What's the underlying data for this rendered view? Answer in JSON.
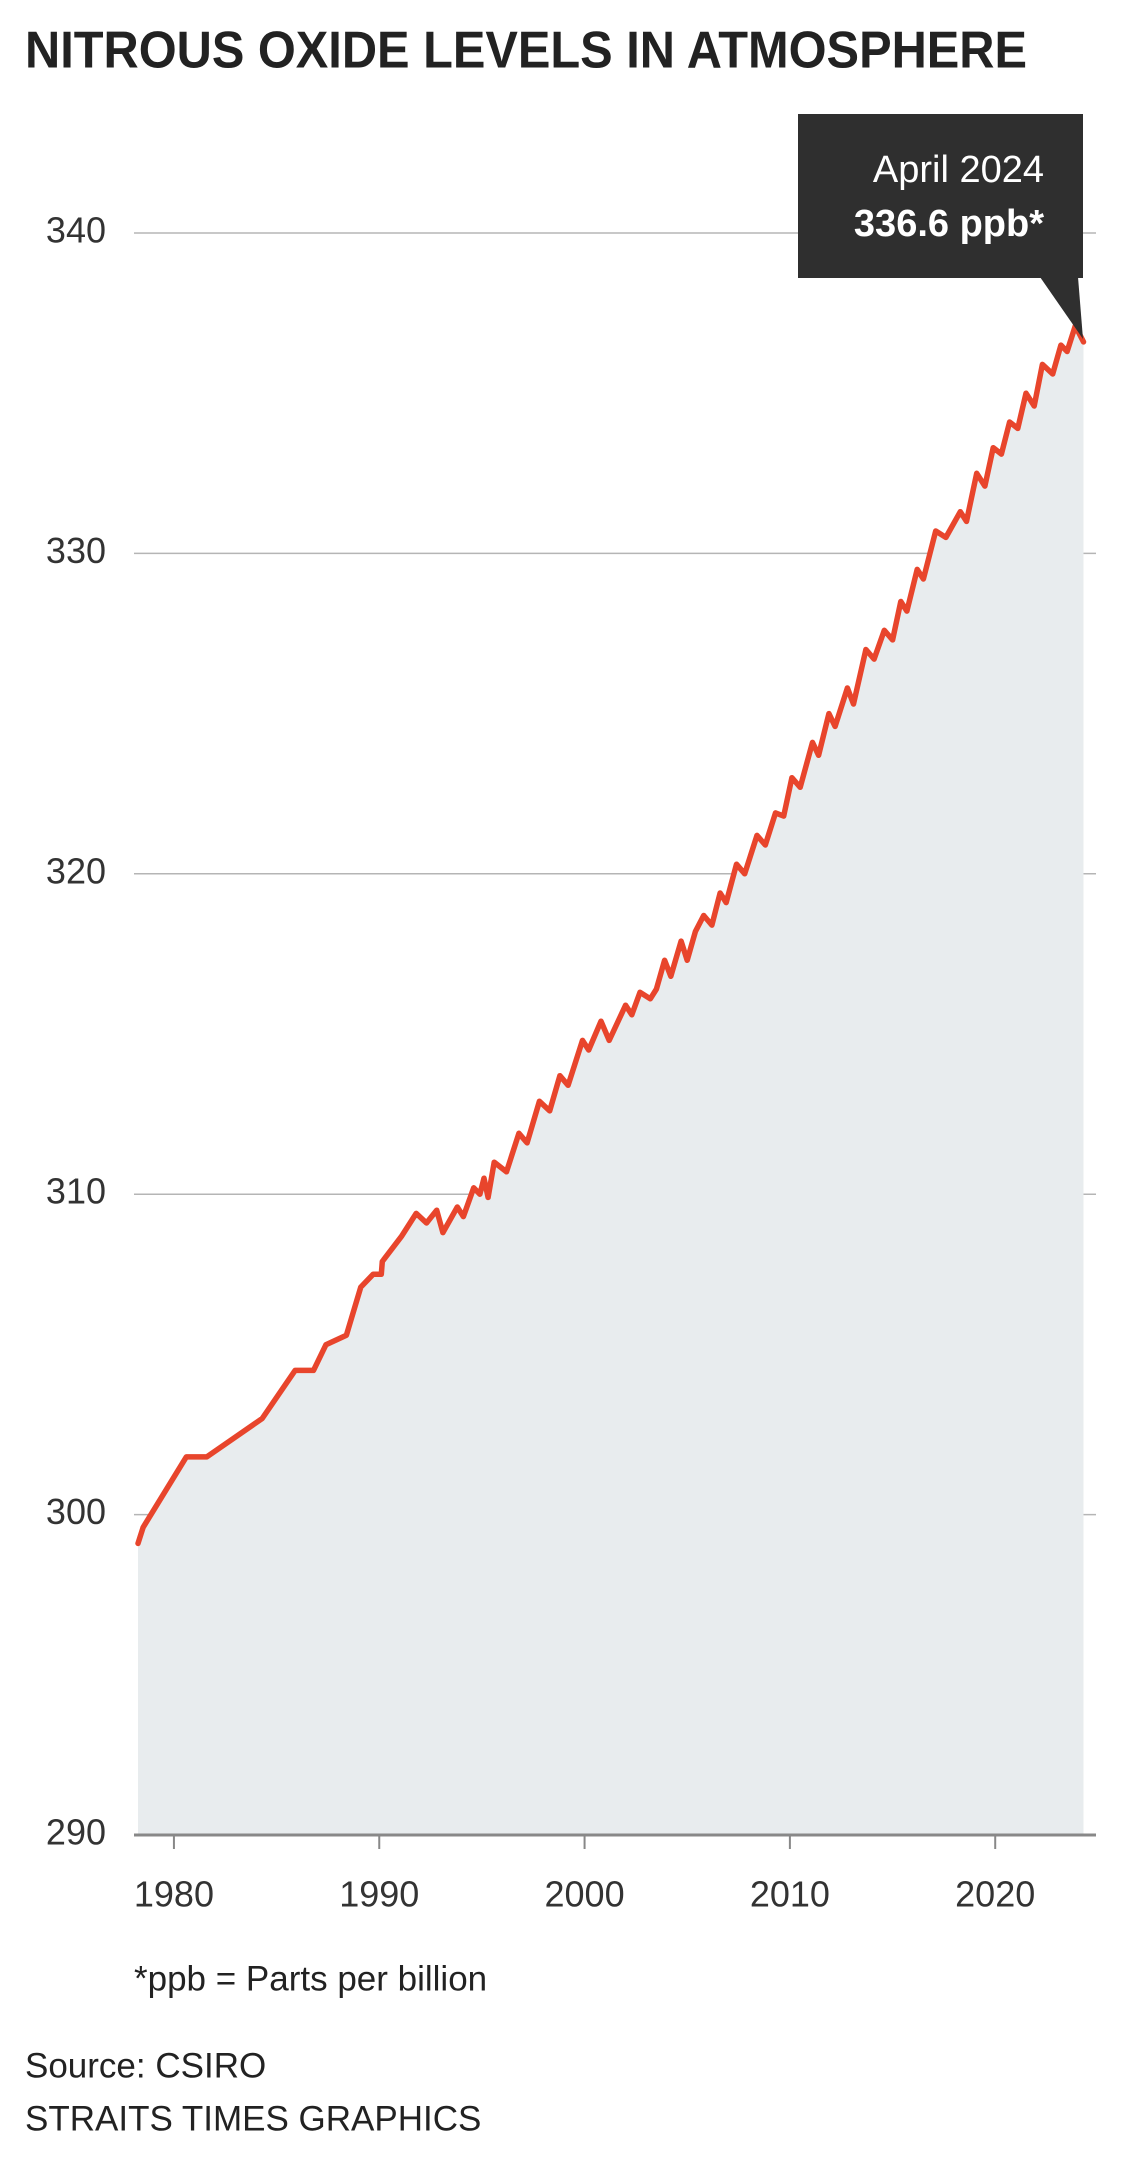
{
  "chart_data": {
    "type": "area",
    "title": "NITROUS OXIDE LEVELS IN ATMOSPHERE",
    "annotation": {
      "label": "April 2024",
      "value_label": "336.6 ppb*"
    },
    "footnote": "*ppb = Parts per billion",
    "source": "Source: CSIRO",
    "credit": "STRAITS TIMES GRAPHICS",
    "color": "#e8452c",
    "area_color": "#e8ecee",
    "grid": true,
    "xlim": [
      1978.25,
      2024.3
    ],
    "xticks": [
      1980,
      1990,
      2000,
      2010,
      2020
    ],
    "ylim": [
      290,
      340
    ],
    "yticks": [
      290,
      300,
      310,
      320,
      330,
      340
    ],
    "x": [
      1978.25,
      1978.5,
      1980.6,
      1981.6,
      1984.3,
      1985.9,
      1986.8,
      1987.4,
      1988.4,
      1989.1,
      1989.7,
      1990.1,
      1990.15,
      1991.1,
      1991.8,
      1992.3,
      1992.8,
      1993.1,
      1993.8,
      1994.1,
      1994.6,
      1994.9,
      1995.1,
      1995.3,
      1995.6,
      1996.2,
      1996.8,
      1997.2,
      1997.8,
      1998.3,
      1998.8,
      1999.2,
      1999.9,
      2000.2,
      2000.8,
      2001.2,
      2002.0,
      2002.3,
      2002.7,
      2003.2,
      2003.5,
      2003.9,
      2004.2,
      2004.7,
      2005.0,
      2005.4,
      2005.8,
      2006.2,
      2006.6,
      2006.9,
      2007.4,
      2007.8,
      2008.4,
      2008.8,
      2009.3,
      2009.7,
      2010.1,
      2010.5,
      2011.1,
      2011.4,
      2011.9,
      2012.2,
      2012.8,
      2013.1,
      2013.7,
      2014.1,
      2014.6,
      2015.0,
      2015.4,
      2015.7,
      2016.2,
      2016.5,
      2017.1,
      2017.6,
      2018.3,
      2018.6,
      2019.1,
      2019.5,
      2019.9,
      2020.3,
      2020.7,
      2021.1,
      2021.5,
      2021.9,
      2022.3,
      2022.8,
      2023.2,
      2023.5,
      2023.9,
      2024.3
    ],
    "values": [
      299.1,
      299.6,
      301.8,
      301.8,
      303.0,
      304.5,
      304.5,
      305.3,
      305.6,
      307.1,
      307.5,
      307.5,
      307.9,
      308.7,
      309.4,
      309.1,
      309.5,
      308.8,
      309.6,
      309.3,
      310.2,
      310.0,
      310.5,
      309.9,
      311.0,
      310.7,
      311.9,
      311.6,
      312.9,
      312.6,
      313.7,
      313.4,
      314.8,
      314.5,
      315.4,
      314.8,
      315.9,
      315.6,
      316.3,
      316.1,
      316.4,
      317.3,
      316.8,
      317.9,
      317.3,
      318.2,
      318.7,
      318.4,
      319.4,
      319.1,
      320.3,
      320.0,
      321.2,
      320.9,
      321.9,
      321.8,
      323.0,
      322.7,
      324.1,
      323.7,
      325.0,
      324.6,
      325.8,
      325.3,
      327.0,
      326.7,
      327.6,
      327.3,
      328.5,
      328.2,
      329.5,
      329.2,
      330.7,
      330.5,
      331.3,
      331.0,
      332.5,
      332.1,
      333.3,
      333.1,
      334.1,
      333.9,
      335.0,
      334.6,
      335.9,
      335.6,
      336.5,
      336.3,
      337.1,
      336.6
    ]
  }
}
